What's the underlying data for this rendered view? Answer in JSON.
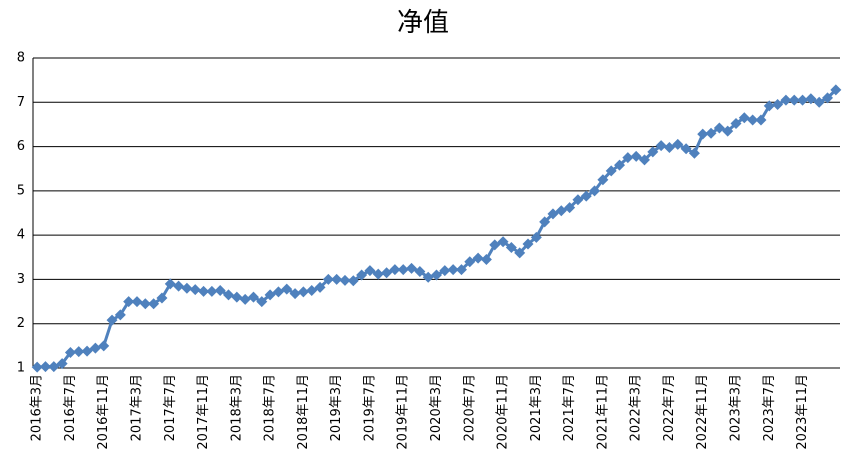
{
  "chart_data": {
    "type": "line",
    "title": "净值",
    "categories": [
      "2016年3月",
      null,
      null,
      null,
      "2016年7月",
      null,
      null,
      null,
      "2016年11月",
      null,
      null,
      null,
      "2017年3月",
      null,
      null,
      null,
      "2017年7月",
      null,
      null,
      null,
      "2017年11月",
      null,
      null,
      null,
      "2018年3月",
      null,
      null,
      null,
      "2018年7月",
      null,
      null,
      null,
      "2018年11月",
      null,
      null,
      null,
      "2019年3月",
      null,
      null,
      null,
      "2019年7月",
      null,
      null,
      null,
      "2019年11月",
      null,
      null,
      null,
      "2020年3月",
      null,
      null,
      null,
      "2020年7月",
      null,
      null,
      null,
      "2020年11月",
      null,
      null,
      null,
      "2021年3月",
      null,
      null,
      null,
      "2021年7月",
      null,
      null,
      null,
      "2021年11月",
      null,
      null,
      null,
      "2022年3月",
      null,
      null,
      null,
      "2022年7月",
      null,
      null,
      null,
      "2022年11月",
      null,
      null,
      null,
      "2023年3月",
      null,
      null,
      null,
      "2023年7月",
      null,
      null,
      null,
      "2023年11月",
      null,
      null,
      null,
      null
    ],
    "values": [
      1.02,
      1.03,
      1.03,
      1.1,
      1.35,
      1.37,
      1.38,
      1.45,
      1.5,
      2.08,
      2.2,
      2.5,
      2.5,
      2.45,
      2.45,
      2.58,
      2.9,
      2.85,
      2.8,
      2.77,
      2.73,
      2.73,
      2.75,
      2.65,
      2.6,
      2.55,
      2.6,
      2.5,
      2.65,
      2.72,
      2.78,
      2.68,
      2.72,
      2.75,
      2.82,
      3.0,
      3.0,
      2.98,
      2.97,
      3.1,
      3.2,
      3.12,
      3.15,
      3.22,
      3.22,
      3.25,
      3.18,
      3.05,
      3.1,
      3.2,
      3.22,
      3.22,
      3.4,
      3.48,
      3.45,
      3.78,
      3.85,
      3.72,
      3.6,
      3.8,
      3.95,
      4.3,
      4.48,
      4.55,
      4.62,
      4.8,
      4.88,
      5.0,
      5.25,
      5.45,
      5.58,
      5.75,
      5.78,
      5.7,
      5.88,
      6.02,
      5.98,
      6.05,
      5.95,
      5.85,
      6.28,
      6.3,
      6.42,
      6.35,
      6.52,
      6.65,
      6.6,
      6.6,
      6.92,
      6.95,
      7.05,
      7.05,
      7.05,
      7.08,
      7.0,
      7.1,
      7.28
    ],
    "color": "#4f81bd",
    "ylim": [
      1,
      8
    ],
    "yticks": [
      1,
      2,
      3,
      4,
      5,
      6,
      7,
      8
    ],
    "grid": true
  }
}
